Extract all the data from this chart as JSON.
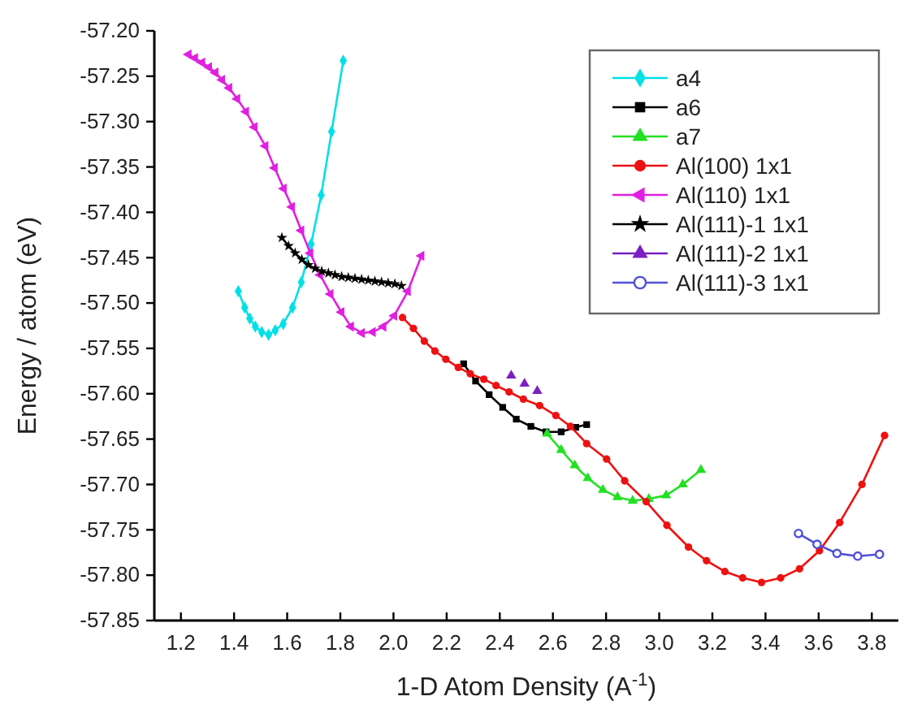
{
  "chart_data": {
    "type": "line",
    "xlabel": "1-D Atom Density (A$^{-1}$)",
    "ylabel": "Energy / atom (eV)",
    "xlim": [
      1.1,
      3.9
    ],
    "ylim": [
      -57.85,
      -57.2
    ],
    "xticks": [
      1.2,
      1.4,
      1.6,
      1.8,
      {
        "value": 2.0,
        "label": "2.0"
      },
      2.2,
      2.4,
      2.6,
      2.8,
      {
        "value": 3.0,
        "label": "3.0"
      },
      3.2,
      3.4,
      3.6,
      3.8
    ],
    "yticks": [
      {
        "value": -57.85,
        "label": "-57.85"
      },
      {
        "value": -57.8,
        "label": "-57.80"
      },
      {
        "value": -57.75,
        "label": "-57.75"
      },
      {
        "value": -57.7,
        "label": "-57.70"
      },
      {
        "value": -57.65,
        "label": "-57.65"
      },
      {
        "value": -57.6,
        "label": "-57.60"
      },
      {
        "value": -57.55,
        "label": "-57.55"
      },
      {
        "value": -57.5,
        "label": "-57.50"
      },
      {
        "value": -57.45,
        "label": "-57.45"
      },
      {
        "value": -57.4,
        "label": "-57.40"
      },
      {
        "value": -57.35,
        "label": "-57.35"
      },
      {
        "value": -57.3,
        "label": "-57.30"
      },
      {
        "value": -57.25,
        "label": "-57.25"
      },
      {
        "value": -57.2,
        "label": "-57.20"
      }
    ],
    "grid": false,
    "legend": "top right",
    "line_style": "solid",
    "series": [
      {
        "name": "a4",
        "color": "#00e0e6",
        "marker": "diamond",
        "x": [
          1.416,
          1.44,
          1.459,
          1.48,
          1.504,
          1.53,
          1.555,
          1.585,
          1.62,
          1.653,
          1.69,
          1.728,
          1.767,
          1.811
        ],
        "values": [
          -57.487,
          -57.505,
          -57.517,
          -57.526,
          -57.532,
          -57.535,
          -57.53,
          -57.523,
          -57.505,
          -57.477,
          -57.435,
          -57.381,
          -57.311,
          -57.233
        ]
      },
      {
        "name": "a6",
        "color": "#000000",
        "marker": "square",
        "x": [
          2.264,
          2.309,
          2.36,
          2.411,
          2.462,
          2.517,
          2.574,
          2.631,
          2.686,
          2.727
        ],
        "values": [
          -57.567,
          -57.586,
          -57.601,
          -57.615,
          -57.628,
          -57.636,
          -57.642,
          -57.642,
          -57.637,
          -57.634
        ]
      },
      {
        "name": "a7",
        "color": "#22e022",
        "marker": "triangle",
        "x": [
          2.578,
          2.631,
          2.682,
          2.731,
          2.788,
          2.843,
          2.9,
          2.961,
          3.026,
          3.089,
          3.157
        ],
        "values": [
          -57.644,
          -57.662,
          -57.679,
          -57.693,
          -57.706,
          -57.714,
          -57.718,
          -57.716,
          -57.712,
          -57.7,
          -57.684
        ]
      },
      {
        "name": "Al(100) 1x1",
        "color": "#ee1111",
        "marker": "circle",
        "x": [
          2.034,
          2.075,
          2.116,
          2.156,
          2.197,
          2.244,
          2.289,
          2.34,
          2.386,
          2.435,
          2.489,
          2.55,
          2.611,
          2.666,
          2.727,
          2.802,
          2.87,
          2.951,
          3.029,
          3.11,
          3.178,
          3.247,
          3.314,
          3.385,
          3.457,
          3.528,
          3.603,
          3.679,
          3.763,
          3.848
        ],
        "values": [
          -57.516,
          -57.528,
          -57.542,
          -57.553,
          -57.562,
          -57.571,
          -57.578,
          -57.584,
          -57.591,
          -57.598,
          -57.606,
          -57.613,
          -57.624,
          -57.636,
          -57.655,
          -57.672,
          -57.696,
          -57.719,
          -57.745,
          -57.769,
          -57.784,
          -57.796,
          -57.803,
          -57.808,
          -57.803,
          -57.793,
          -57.773,
          -57.742,
          -57.7,
          -57.646
        ]
      },
      {
        "name": "Al(110) 1x1",
        "color": "#e020e0",
        "marker": "triangle-left",
        "x": [
          1.229,
          1.253,
          1.28,
          1.306,
          1.33,
          1.355,
          1.382,
          1.412,
          1.445,
          1.477,
          1.518,
          1.553,
          1.587,
          1.618,
          1.653,
          1.687,
          1.724,
          1.763,
          1.804,
          1.84,
          1.881,
          1.922,
          1.962,
          2.003,
          2.054,
          2.105
        ],
        "values": [
          -57.226,
          -57.23,
          -57.235,
          -57.24,
          -57.246,
          -57.254,
          -57.263,
          -57.275,
          -57.289,
          -57.306,
          -57.327,
          -57.351,
          -57.374,
          -57.394,
          -57.42,
          -57.445,
          -57.469,
          -57.49,
          -57.51,
          -57.526,
          -57.533,
          -57.532,
          -57.526,
          -57.514,
          -57.487,
          -57.448
        ]
      },
      {
        "name": "Al(111)-1 1x1",
        "color": "#000000",
        "marker": "star",
        "x": [
          1.58,
          1.605,
          1.63,
          1.655,
          1.68,
          1.705,
          1.73,
          1.755,
          1.78,
          1.805,
          1.83,
          1.855,
          1.88,
          1.905,
          1.93,
          1.955,
          1.98,
          2.005,
          2.03
        ],
        "values": [
          -57.428,
          -57.437,
          -57.445,
          -57.452,
          -57.458,
          -57.462,
          -57.465,
          -57.467,
          -57.469,
          -57.471,
          -57.472,
          -57.473,
          -57.474,
          -57.475,
          -57.476,
          -57.477,
          -57.478,
          -57.479,
          -57.481
        ]
      },
      {
        "name": "Al(111)-2 1x1",
        "type": "scatter",
        "color": "#7a1fc0",
        "marker": "triangle",
        "x": [
          2.443,
          2.493,
          2.541
        ],
        "values": [
          -57.58,
          -57.589,
          -57.597
        ]
      },
      {
        "name": "Al(111)-3 1x1",
        "color": "#5050d8",
        "marker": "circle-open",
        "x": [
          3.524,
          3.594,
          3.669,
          3.747,
          3.829
        ],
        "values": [
          -57.754,
          -57.766,
          -57.776,
          -57.779,
          -57.777
        ]
      }
    ]
  }
}
